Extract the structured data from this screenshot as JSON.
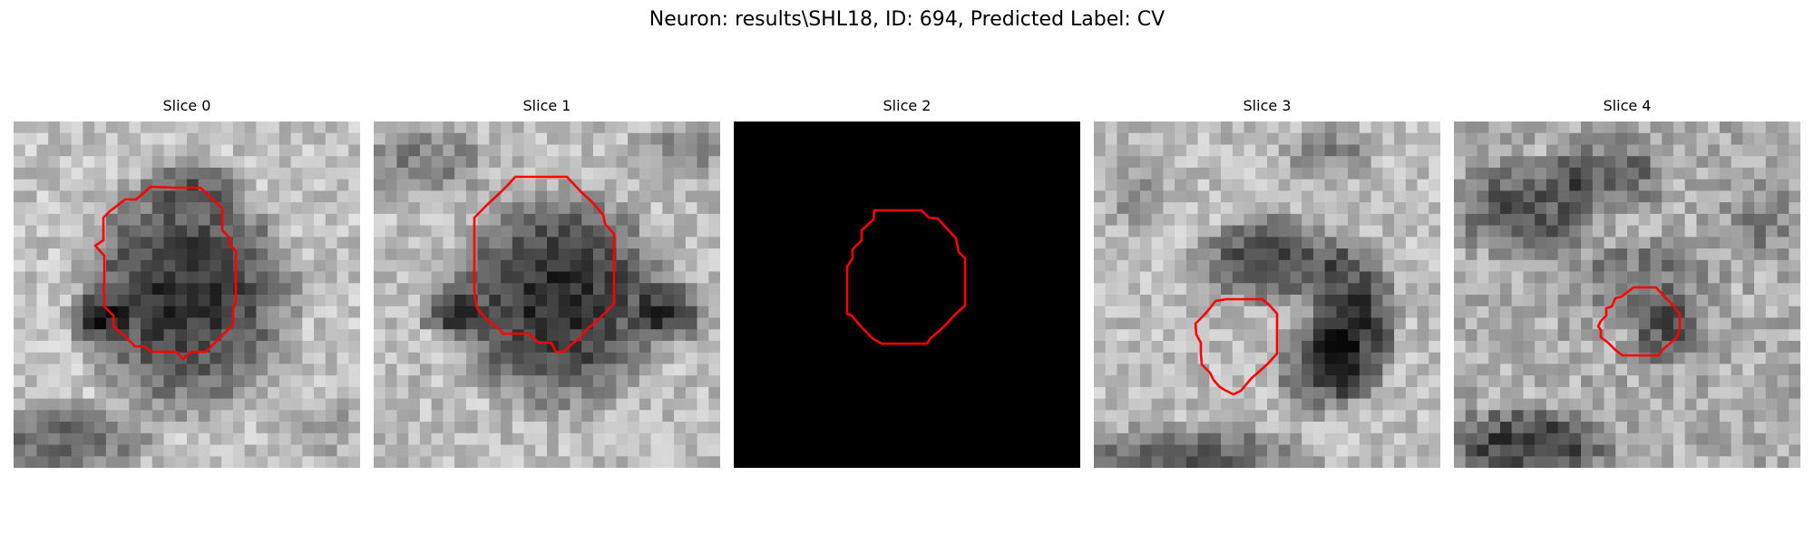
{
  "figure": {
    "title": "Neuron: results\\SHL18, ID: 694, Predicted Label: CV",
    "contour_color": "#ff0000",
    "colormap": "grayscale",
    "grid_size": 30
  },
  "panels": [
    {
      "title": "Slice 0",
      "has_image": true
    },
    {
      "title": "Slice 1",
      "has_image": true
    },
    {
      "title": "Slice 2",
      "has_image": false
    },
    {
      "title": "Slice 3",
      "has_image": true
    },
    {
      "title": "Slice 4",
      "has_image": true
    }
  ]
}
